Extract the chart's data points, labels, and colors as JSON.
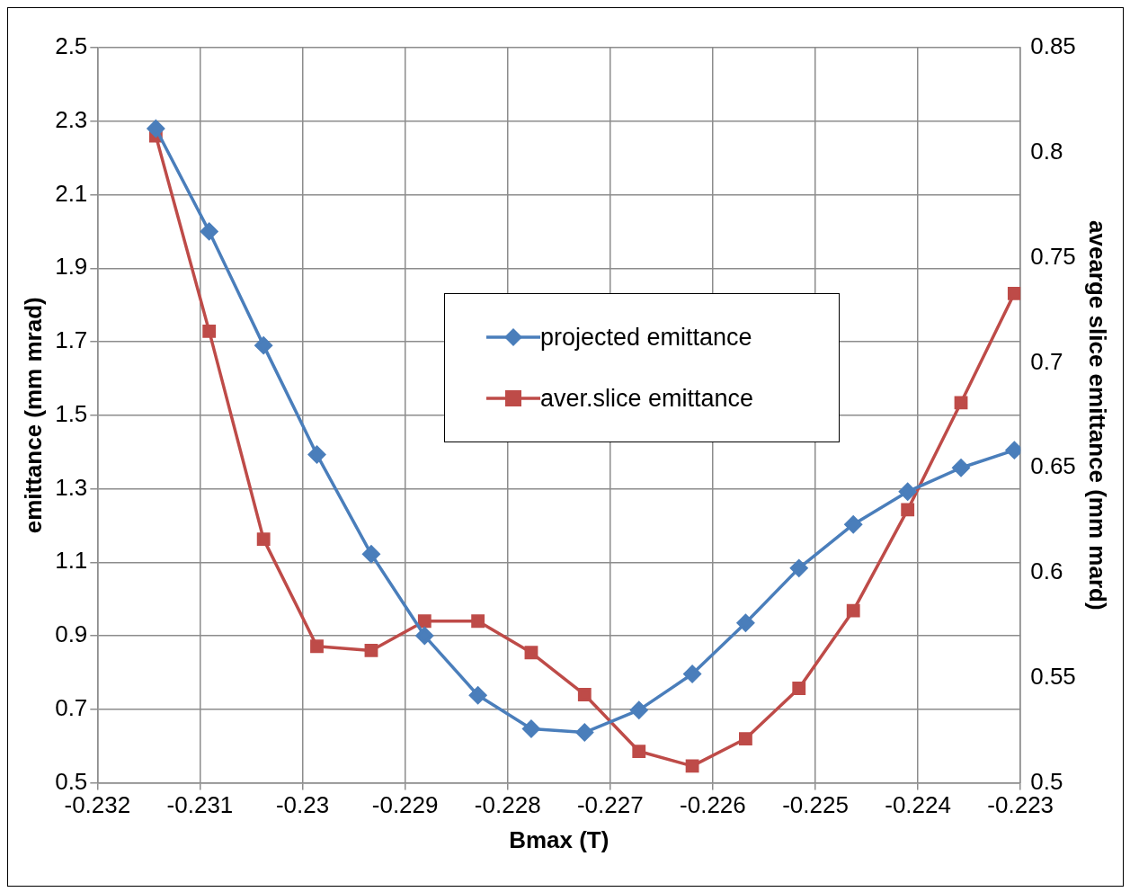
{
  "chart_data": {
    "type": "line",
    "xlabel": "Bmax (T)",
    "ylabel": "emittance (mm mrad)",
    "y2label": "avearge slice emittance (mm mard)",
    "x": [
      -0.23143,
      -0.23091,
      -0.23038,
      -0.22986,
      -0.22933,
      -0.22881,
      -0.22829,
      -0.22777,
      -0.22725,
      -0.22672,
      -0.2262,
      -0.22568,
      -0.22516,
      -0.22463,
      -0.2241,
      -0.22358,
      -0.22306
    ],
    "series": [
      {
        "name": "projected emittance",
        "color": "#4a7ebb",
        "marker": "diamond",
        "values": [
          2.28,
          2.0,
          1.69,
          1.393,
          1.122,
          0.9,
          0.738,
          0.647,
          0.637,
          0.698,
          0.796,
          0.935,
          1.084,
          1.203,
          1.292,
          1.357,
          1.405
        ]
      },
      {
        "name": "aver.slice emittance",
        "color": "#be4b48",
        "marker": "square",
        "axis": "y2",
        "values": [
          0.808,
          0.715,
          0.616,
          0.565,
          0.563,
          0.577,
          0.577,
          0.562,
          0.542,
          0.515,
          0.508,
          0.521,
          0.545,
          0.582,
          0.63,
          0.681,
          0.733
        ]
      }
    ],
    "xlim": [
      -0.232,
      -0.223
    ],
    "xticks": [
      -0.232,
      -0.231,
      -0.23,
      -0.229,
      -0.228,
      -0.227,
      -0.226,
      -0.225,
      -0.224,
      -0.223
    ],
    "ylim": [
      0.5,
      2.5
    ],
    "yticks": [
      0.5,
      0.7,
      0.9,
      1.1,
      1.3,
      1.5,
      1.7,
      1.9,
      2.1,
      2.3,
      2.5
    ],
    "y2lim": [
      0.5,
      0.85
    ],
    "y2ticks": [
      0.5,
      0.55,
      0.6,
      0.65,
      0.7,
      0.75,
      0.8,
      0.85
    ],
    "grid": true,
    "legend": "center",
    "line_style": "solid"
  }
}
